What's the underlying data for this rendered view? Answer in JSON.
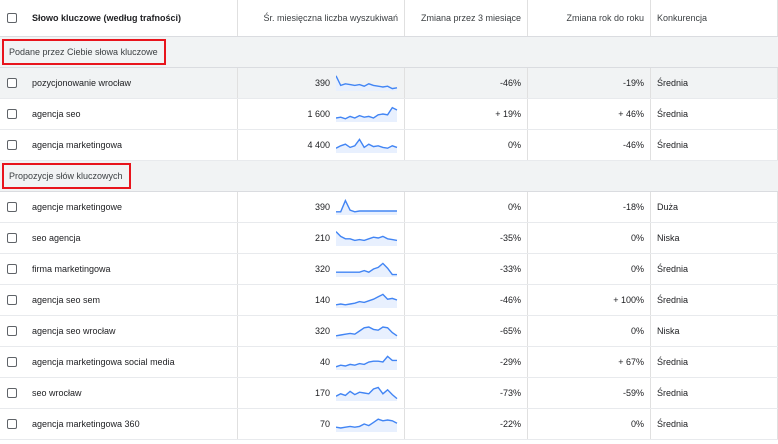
{
  "header": {
    "keyword": "Słowo kluczowe (według trafności)",
    "volume": "Śr. miesięczna liczba wyszukiwań",
    "change3m": "Zmiana przez 3 miesiące",
    "yoy": "Zmiana rok do roku",
    "competition": "Konkurencja"
  },
  "sections": [
    {
      "label": "Podane przez Ciebie słowa kluczowe",
      "rows": [
        {
          "keyword": "pozycjonowanie wrocław",
          "volume": "390",
          "change3m": "-46%",
          "yoy": "-19%",
          "competition": "Średnia",
          "trend": [
            0.95,
            0.35,
            0.45,
            0.4,
            0.35,
            0.4,
            0.3,
            0.45,
            0.35,
            0.3,
            0.25,
            0.3,
            0.15,
            0.2
          ]
        },
        {
          "keyword": "agencja seo",
          "volume": "1 600",
          "change3m": "+ 19%",
          "yoy": "+ 46%",
          "competition": "Średnia",
          "trend": [
            0.25,
            0.3,
            0.2,
            0.35,
            0.25,
            0.4,
            0.3,
            0.35,
            0.25,
            0.45,
            0.5,
            0.45,
            0.9,
            0.75
          ]
        },
        {
          "keyword": "agencja marketingowa",
          "volume": "4 400",
          "change3m": "0%",
          "yoy": "-46%",
          "competition": "Średnia",
          "trend": [
            0.3,
            0.45,
            0.55,
            0.35,
            0.45,
            0.85,
            0.35,
            0.55,
            0.4,
            0.45,
            0.35,
            0.3,
            0.45,
            0.35
          ]
        }
      ]
    },
    {
      "label": "Propozycje słów kluczowych",
      "rows": [
        {
          "keyword": "agencje marketingowe",
          "volume": "390",
          "change3m": "0%",
          "yoy": "-18%",
          "competition": "Duża",
          "trend": [
            0.2,
            0.2,
            0.9,
            0.3,
            0.2,
            0.25,
            0.25,
            0.25,
            0.25,
            0.25,
            0.25,
            0.25,
            0.25,
            0.25
          ]
        },
        {
          "keyword": "seo agencja",
          "volume": "210",
          "change3m": "-35%",
          "yoy": "0%",
          "competition": "Niska",
          "trend": [
            0.9,
            0.6,
            0.45,
            0.45,
            0.35,
            0.4,
            0.35,
            0.45,
            0.55,
            0.5,
            0.6,
            0.45,
            0.4,
            0.35
          ]
        },
        {
          "keyword": "firma marketingowa",
          "volume": "320",
          "change3m": "-33%",
          "yoy": "0%",
          "competition": "Średnia",
          "trend": [
            0.3,
            0.3,
            0.3,
            0.3,
            0.3,
            0.3,
            0.4,
            0.3,
            0.5,
            0.6,
            0.85,
            0.55,
            0.15,
            0.15
          ]
        },
        {
          "keyword": "agencja seo sem",
          "volume": "140",
          "change3m": "-46%",
          "yoy": "+ 100%",
          "competition": "Średnia",
          "trend": [
            0.2,
            0.25,
            0.2,
            0.25,
            0.3,
            0.4,
            0.35,
            0.45,
            0.55,
            0.7,
            0.85,
            0.55,
            0.6,
            0.5
          ]
        },
        {
          "keyword": "agencja seo wrocław",
          "volume": "320",
          "change3m": "-65%",
          "yoy": "0%",
          "competition": "Niska",
          "trend": [
            0.2,
            0.25,
            0.3,
            0.35,
            0.3,
            0.5,
            0.7,
            0.75,
            0.6,
            0.55,
            0.75,
            0.7,
            0.4,
            0.2
          ]
        },
        {
          "keyword": "agencja marketingowa social media",
          "volume": "40",
          "change3m": "-29%",
          "yoy": "+ 67%",
          "competition": "Średnia",
          "trend": [
            0.2,
            0.3,
            0.25,
            0.35,
            0.3,
            0.4,
            0.35,
            0.5,
            0.55,
            0.55,
            0.5,
            0.85,
            0.6,
            0.6
          ]
        },
        {
          "keyword": "seo wrocław",
          "volume": "170",
          "change3m": "-73%",
          "yoy": "-59%",
          "competition": "Średnia",
          "trend": [
            0.3,
            0.45,
            0.35,
            0.6,
            0.4,
            0.55,
            0.5,
            0.45,
            0.75,
            0.85,
            0.45,
            0.7,
            0.4,
            0.15
          ]
        },
        {
          "keyword": "agencja marketingowa 360",
          "volume": "70",
          "change3m": "-22%",
          "yoy": "0%",
          "competition": "Średnia",
          "trend": [
            0.3,
            0.25,
            0.3,
            0.35,
            0.3,
            0.35,
            0.5,
            0.4,
            0.6,
            0.8,
            0.7,
            0.75,
            0.7,
            0.55
          ]
        }
      ]
    }
  ],
  "colors": {
    "trend_line": "#4285f4",
    "trend_fill": "#e8f0fe",
    "highlight_box": "#e8141c"
  }
}
